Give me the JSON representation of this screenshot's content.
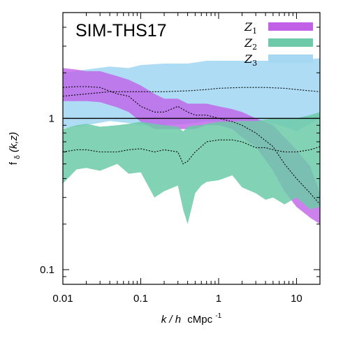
{
  "chart_data": {
    "type": "area",
    "title": "SIM-THS17",
    "xlabel_prefix": "k / h",
    "xlabel_unit": "cMpc",
    "xlabel_exponent": "-1",
    "ylabel_prefix": "f",
    "ylabel_sub": "δ",
    "ylabel_suffix": "(k,z)",
    "xscale": "log",
    "yscale": "log",
    "xlim": [
      0.01,
      20
    ],
    "ylim": [
      0.08,
      5
    ],
    "x_ticks": [
      0.01,
      0.1,
      1,
      10
    ],
    "x_tick_labels": [
      "0.01",
      "0.1",
      "1",
      "10"
    ],
    "y_ticks": [
      0.1,
      1
    ],
    "y_tick_labels": [
      "0.1",
      "1"
    ],
    "reference_line": 1,
    "legend": [
      {
        "base": "Z",
        "sub": "1",
        "color": "#c061e8"
      },
      {
        "base": "Z",
        "sub": "2",
        "color": "#6ccaa8"
      },
      {
        "base": "Z",
        "sub": "3",
        "color": "#a6d8f4"
      }
    ],
    "series": [
      {
        "name": "Z3",
        "color": "#a6d8f4",
        "opacity": 0.9,
        "x": [
          0.01,
          0.02,
          0.04,
          0.07,
          0.1,
          0.2,
          0.4,
          0.7,
          1,
          2,
          4,
          7,
          10,
          20
        ],
        "upper": [
          2.0,
          2.1,
          2.2,
          2.15,
          2.25,
          2.3,
          2.3,
          2.4,
          2.4,
          2.4,
          2.4,
          2.4,
          2.4,
          2.5
        ],
        "lower": [
          0.86,
          0.9,
          0.96,
          0.93,
          0.9,
          0.9,
          0.92,
          0.95,
          0.95,
          0.95,
          0.95,
          0.88,
          0.82,
          1.0
        ],
        "center": [
          1.4,
          1.45,
          1.5,
          1.5,
          1.5,
          1.5,
          1.52,
          1.55,
          1.58,
          1.6,
          1.6,
          1.58,
          1.55,
          1.5
        ]
      },
      {
        "name": "Z1",
        "color": "#c061e8",
        "opacity": 0.8,
        "x": [
          0.01,
          0.015,
          0.02,
          0.03,
          0.05,
          0.07,
          0.1,
          0.15,
          0.2,
          0.3,
          0.4,
          0.5,
          0.7,
          1,
          1.5,
          2,
          3,
          5,
          7,
          10,
          15,
          20
        ],
        "upper": [
          2.15,
          2.1,
          2.05,
          2.05,
          1.9,
          1.8,
          1.65,
          1.45,
          1.35,
          1.35,
          1.25,
          1.25,
          1.25,
          1.2,
          1.15,
          1.1,
          1.0,
          0.9,
          0.75,
          0.62,
          0.48,
          0.32
        ],
        "lower": [
          1.3,
          1.3,
          1.3,
          1.28,
          1.18,
          1.1,
          0.95,
          0.85,
          0.85,
          0.85,
          0.85,
          0.85,
          0.9,
          0.9,
          0.85,
          0.75,
          0.65,
          0.45,
          0.33,
          0.26,
          0.22,
          0.2
        ],
        "center": [
          1.6,
          1.62,
          1.62,
          1.6,
          1.45,
          1.4,
          1.2,
          1.1,
          1.1,
          1.2,
          1.1,
          1.05,
          1.05,
          1.0,
          0.95,
          0.9,
          0.8,
          0.65,
          0.5,
          0.4,
          0.32,
          0.27
        ]
      },
      {
        "name": "Z2",
        "color": "#6ccaa8",
        "opacity": 0.85,
        "x": [
          0.01,
          0.015,
          0.02,
          0.03,
          0.05,
          0.07,
          0.1,
          0.15,
          0.2,
          0.3,
          0.35,
          0.4,
          0.5,
          0.6,
          0.7,
          1,
          1.5,
          2,
          3,
          4,
          5,
          7,
          10,
          15,
          20
        ],
        "upper": [
          0.85,
          0.9,
          0.92,
          0.88,
          0.9,
          0.92,
          0.95,
          0.92,
          0.9,
          0.88,
          0.82,
          0.88,
          0.9,
          0.9,
          0.92,
          0.95,
          0.95,
          0.96,
          0.96,
          0.98,
          1.0,
          1.0,
          1.0,
          1.05,
          1.1
        ],
        "lower": [
          0.37,
          0.46,
          0.47,
          0.45,
          0.5,
          0.43,
          0.44,
          0.3,
          0.33,
          0.36,
          0.25,
          0.2,
          0.32,
          0.36,
          0.38,
          0.39,
          0.42,
          0.35,
          0.32,
          0.29,
          0.3,
          0.27,
          0.3,
          0.25,
          0.26
        ],
        "center": [
          0.6,
          0.62,
          0.62,
          0.6,
          0.6,
          0.62,
          0.63,
          0.6,
          0.62,
          0.6,
          0.5,
          0.52,
          0.6,
          0.65,
          0.7,
          0.72,
          0.72,
          0.7,
          0.64,
          0.64,
          0.62,
          0.6,
          0.6,
          0.62,
          0.65
        ]
      }
    ]
  }
}
